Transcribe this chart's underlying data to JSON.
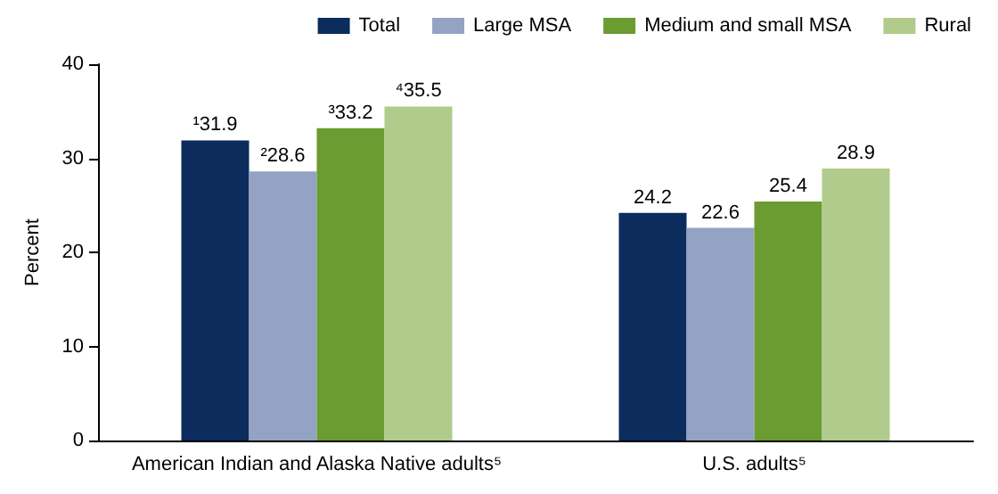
{
  "chart_data": {
    "type": "bar",
    "ylabel": "Percent",
    "categories": [
      "American Indian and Alaska Native adults⁵",
      "U.S. adults⁵"
    ],
    "series": [
      {
        "name": "Total",
        "color": "#0b2c5c",
        "values": [
          31.9,
          24.2
        ],
        "value_labels": [
          "¹31.9",
          "24.2"
        ]
      },
      {
        "name": "Large MSA",
        "color": "#94a2c3",
        "values": [
          28.6,
          22.6
        ],
        "value_labels": [
          "²28.6",
          "22.6"
        ]
      },
      {
        "name": "Medium and small MSA",
        "color": "#6a9c31",
        "values": [
          33.2,
          25.4
        ],
        "value_labels": [
          "³33.2",
          "25.4"
        ]
      },
      {
        "name": "Rural",
        "color": "#b0cb8b",
        "values": [
          35.5,
          28.9
        ],
        "value_labels": [
          "⁴35.5",
          "28.9"
        ]
      }
    ],
    "ylim": [
      0,
      40
    ],
    "yticks": [
      0,
      10,
      20,
      30,
      40
    ],
    "grid": false,
    "legend": "top right"
  }
}
